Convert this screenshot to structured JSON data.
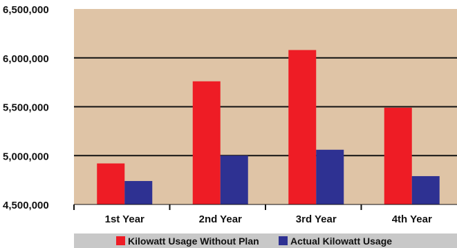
{
  "chart_data": {
    "type": "bar",
    "categories": [
      "1st Year",
      "2nd Year",
      "3rd Year",
      "4th Year"
    ],
    "series": [
      {
        "name": "Kilowatt Usage Without Plan",
        "color": "#ee1c25",
        "values": [
          4920000,
          5760000,
          6080000,
          5490000
        ]
      },
      {
        "name": "Actual Kilowatt Usage",
        "color": "#2e3192",
        "values": [
          4740000,
          5000000,
          5060000,
          4790000
        ]
      }
    ],
    "ylim": [
      4500000,
      6500000
    ],
    "yticks": [
      4500000,
      5000000,
      5500000,
      6000000,
      6500000
    ],
    "ytick_labels": [
      "4,500,000",
      "5,000,000",
      "5,500,000",
      "6,000,000",
      "6,500,000"
    ],
    "plot_background": "#dfc4a6",
    "legend_background": "#c8c8c8",
    "grid": true,
    "legend_position": "bottom",
    "title": "",
    "xlabel": "",
    "ylabel": ""
  }
}
